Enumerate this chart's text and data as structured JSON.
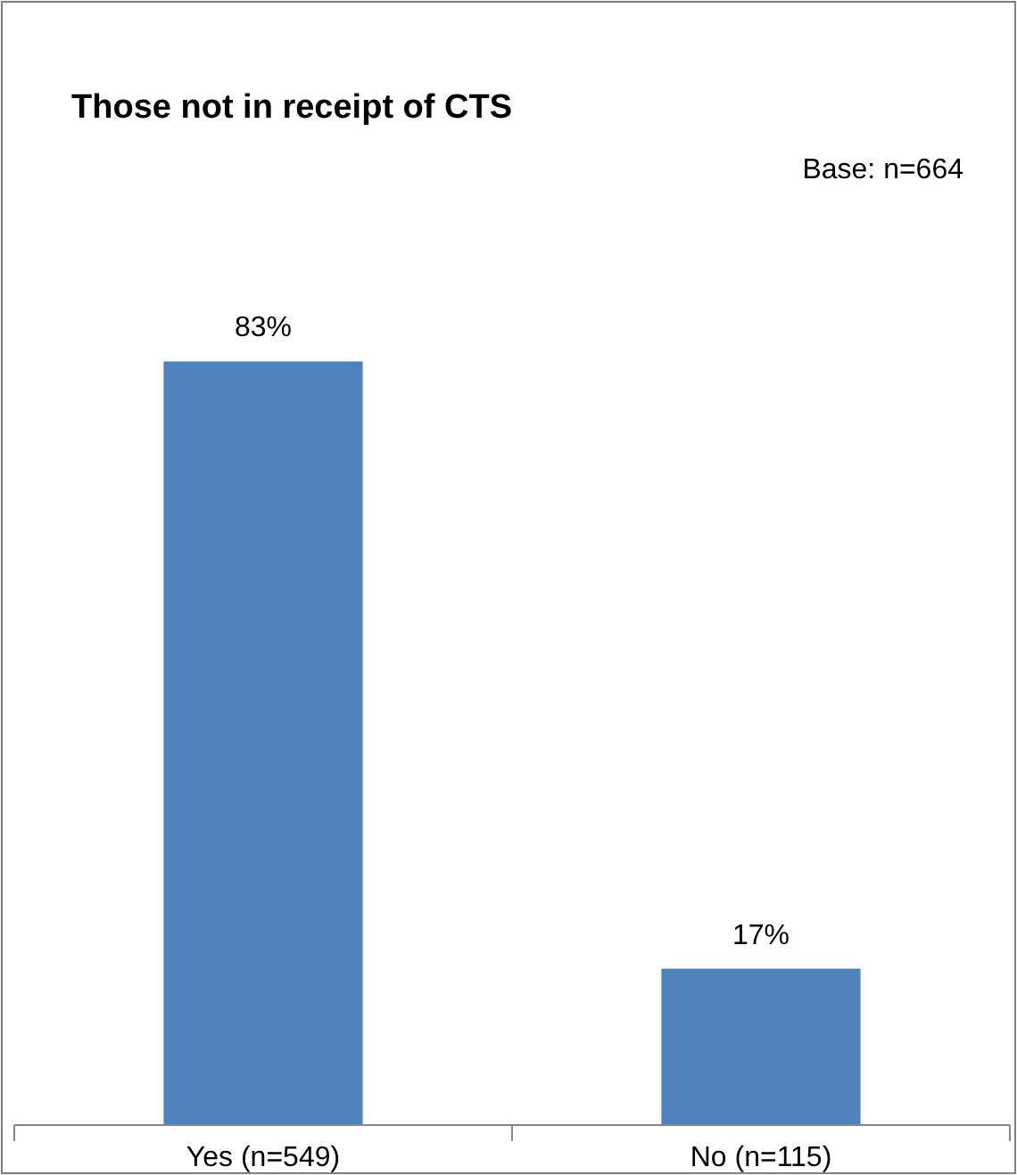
{
  "chart_data": {
    "type": "bar",
    "title": "Those not in receipt of CTS",
    "annotations": [
      "Base:  n=664"
    ],
    "categories": [
      "Yes (n=549)",
      "No (n=115)"
    ],
    "values": [
      83,
      17
    ],
    "value_labels": [
      "83%",
      "17%"
    ],
    "color": "#4f81bd"
  }
}
